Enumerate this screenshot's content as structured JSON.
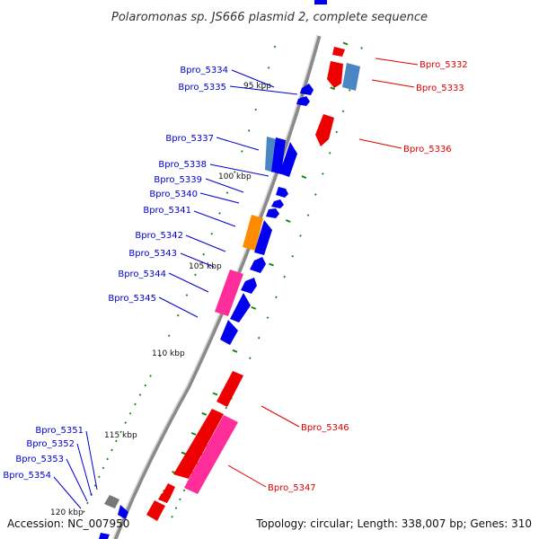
{
  "title": "Polaromonas sp. JS666 plasmid 2, complete sequence",
  "footer": {
    "accession": "Accession: NC_007950",
    "summary": "Topology: circular; Length: 338,007 bp; Genes: 310"
  },
  "ticks": [
    "95 kbp",
    "100 kbp",
    "105 kbp",
    "110 kbp",
    "115 kbp",
    "120 kbp"
  ],
  "colors": {
    "forward": "#0000ee",
    "reverse": "#ee0000",
    "magenta": "#ff2d9a",
    "orange": "#ff8c00",
    "steelblue": "#4a86c4",
    "gray": "#777777",
    "tick_green": "#118811",
    "backbone": "#8a8a8a"
  },
  "labels_left": [
    "Bpro_5334",
    "Bpro_5335",
    "Bpro_5337",
    "Bpro_5338",
    "Bpro_5339",
    "Bpro_5340",
    "Bpro_5341",
    "Bpro_5342",
    "Bpro_5343",
    "Bpro_5344",
    "Bpro_5345",
    "Bpro_5351",
    "Bpro_5352",
    "Bpro_5353",
    "Bpro_5354"
  ],
  "labels_right": [
    "Bpro_5332",
    "Bpro_5333",
    "Bpro_5336",
    "Bpro_5346",
    "Bpro_5347"
  ]
}
